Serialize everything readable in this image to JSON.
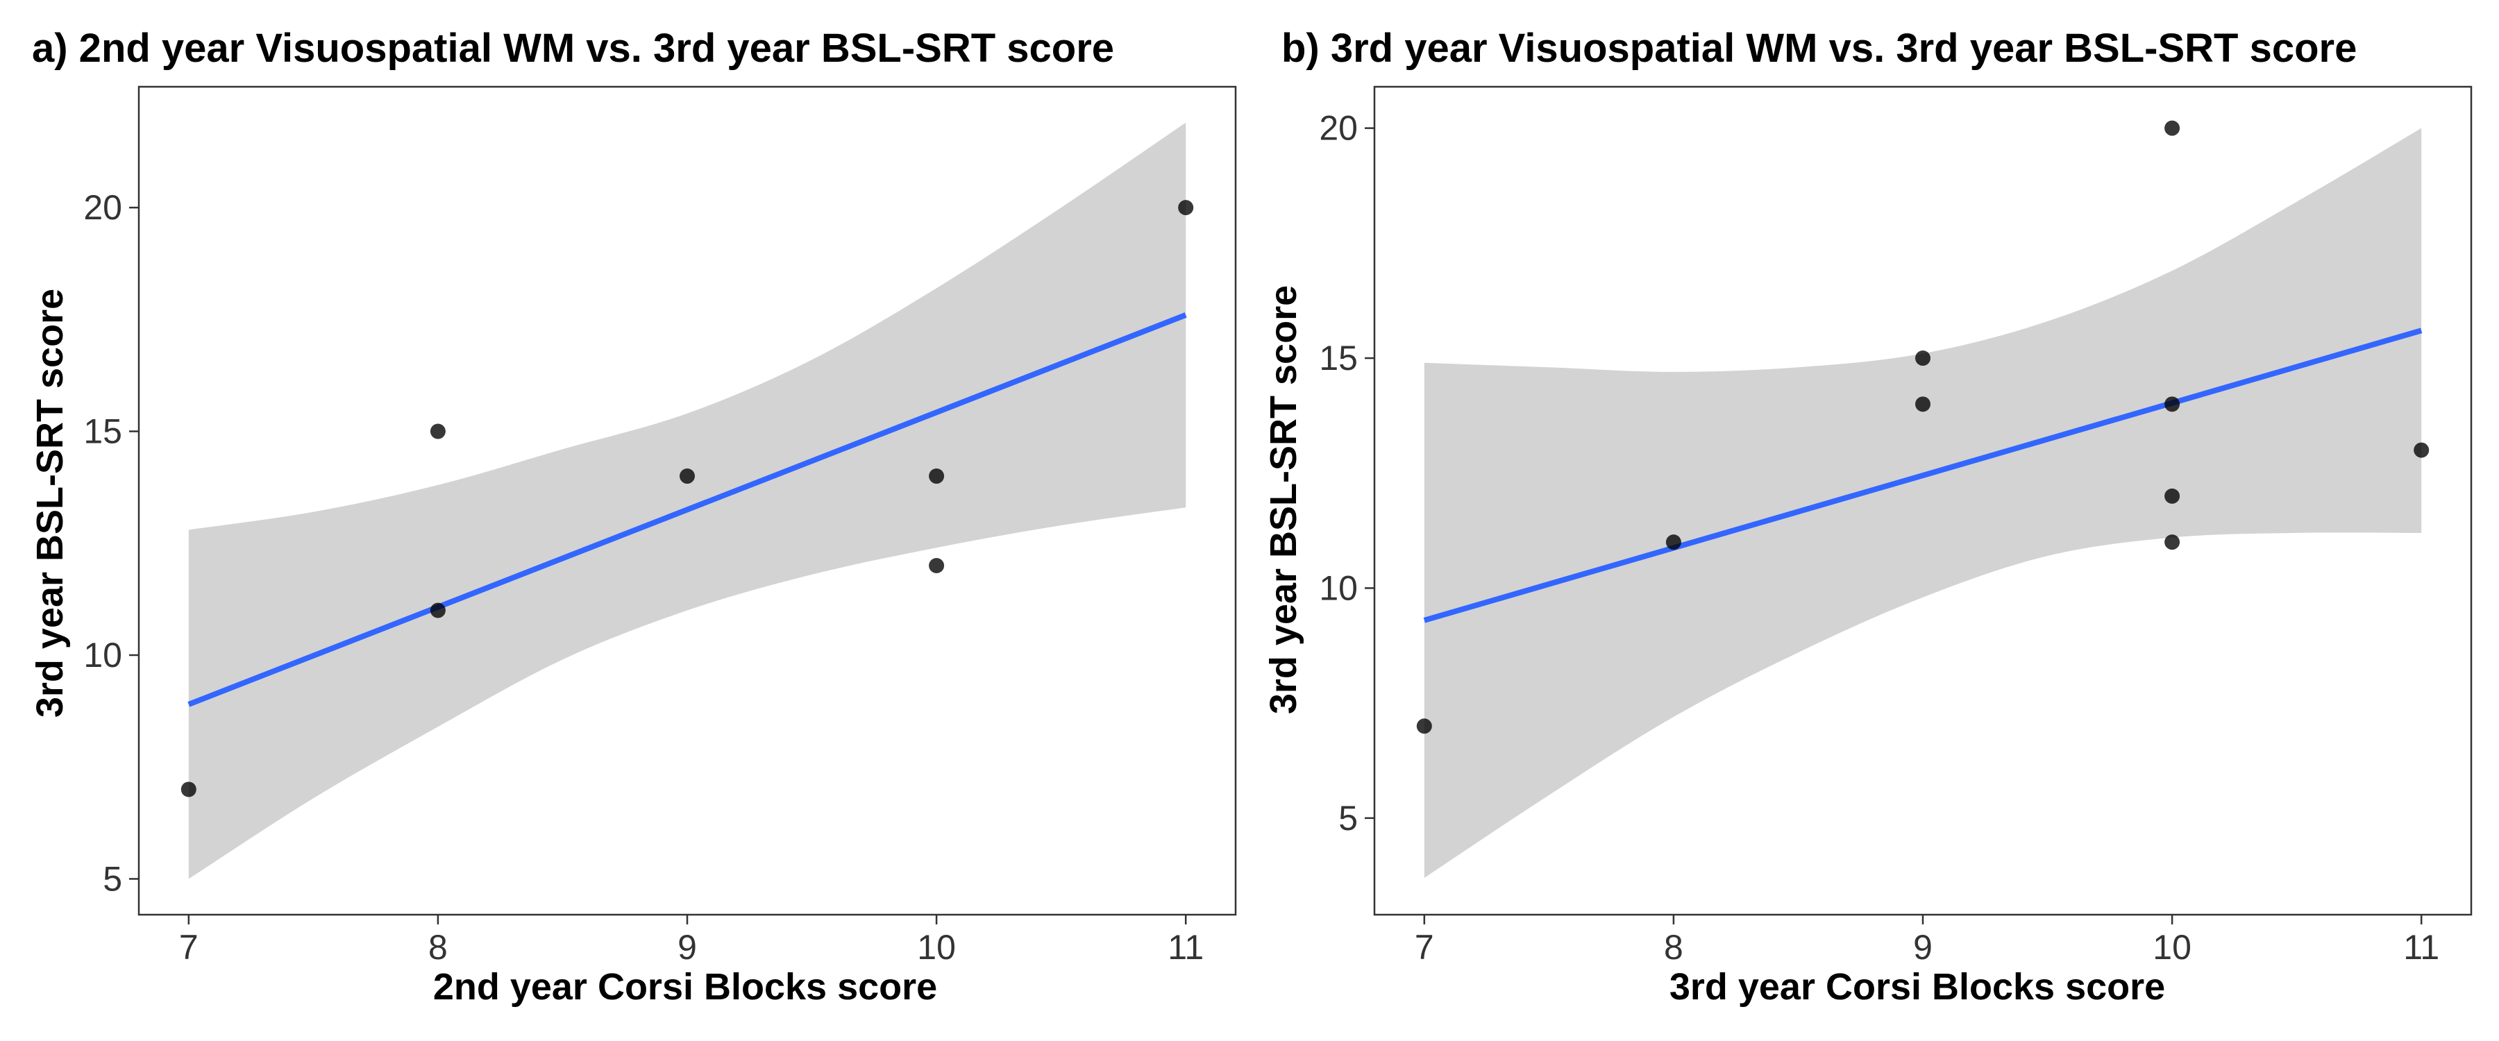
{
  "chart_data": [
    {
      "type": "scatter",
      "panel_title": "a) 2nd year Visuospatial WM vs. 3rd year BSL-SRT score",
      "xlabel": "2nd year Corsi Blocks score",
      "ylabel": "3rd year BSL-SRT score",
      "xlim": [
        6.8,
        11.2
      ],
      "ylim": [
        4.2,
        22.7
      ],
      "x_ticks": [
        7,
        8,
        9,
        10,
        11
      ],
      "y_ticks": [
        5,
        10,
        15,
        20
      ],
      "grid": false,
      "points": [
        {
          "x": 7,
          "y": 7
        },
        {
          "x": 8,
          "y": 15
        },
        {
          "x": 8,
          "y": 11
        },
        {
          "x": 9,
          "y": 14
        },
        {
          "x": 10,
          "y": 14
        },
        {
          "x": 10,
          "y": 12
        },
        {
          "x": 11,
          "y": 20
        }
      ],
      "fit_line": {
        "x": [
          7,
          11
        ],
        "y": [
          8.9,
          17.6
        ],
        "color": "#3366FF"
      },
      "confidence_band": {
        "fill": "#D3D3D3",
        "x": [
          7,
          7.5,
          8,
          8.5,
          9,
          9.5,
          10,
          10.5,
          11
        ],
        "upper": [
          12.8,
          13.2,
          13.8,
          14.6,
          15.4,
          16.6,
          18.2,
          20.0,
          21.9
        ],
        "lower": [
          5.0,
          6.8,
          8.4,
          9.9,
          11.0,
          11.8,
          12.4,
          12.9,
          13.3
        ]
      },
      "point_color": "#000000"
    },
    {
      "type": "scatter",
      "panel_title": "b) 3rd year Visuospatial WM vs. 3rd year BSL-SRT score",
      "xlabel": "3rd year Corsi Blocks score",
      "ylabel": "3rd year BSL-SRT score",
      "xlim": [
        6.8,
        11.2
      ],
      "ylim": [
        2.9,
        20.9
      ],
      "x_ticks": [
        7,
        8,
        9,
        10,
        11
      ],
      "y_ticks": [
        5,
        10,
        15,
        20
      ],
      "grid": false,
      "points": [
        {
          "x": 7,
          "y": 7
        },
        {
          "x": 8,
          "y": 11
        },
        {
          "x": 9,
          "y": 15
        },
        {
          "x": 9,
          "y": 14
        },
        {
          "x": 10,
          "y": 20
        },
        {
          "x": 10,
          "y": 14
        },
        {
          "x": 10,
          "y": 12
        },
        {
          "x": 10,
          "y": 11
        },
        {
          "x": 11,
          "y": 13
        }
      ],
      "fit_line": {
        "x": [
          7,
          11
        ],
        "y": [
          9.3,
          15.6
        ],
        "color": "#3366FF"
      },
      "confidence_band": {
        "fill": "#D3D3D3",
        "x": [
          7,
          7.5,
          8,
          8.5,
          9,
          9.5,
          10,
          10.5,
          11
        ],
        "upper": [
          14.9,
          14.8,
          14.7,
          14.8,
          15.1,
          15.8,
          16.9,
          18.4,
          20.0
        ],
        "lower": [
          3.7,
          5.5,
          7.2,
          8.6,
          9.8,
          10.7,
          11.1,
          11.2,
          11.2
        ]
      },
      "point_color": "#000000"
    }
  ]
}
